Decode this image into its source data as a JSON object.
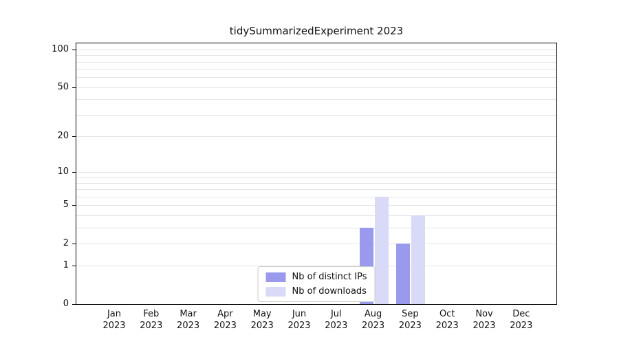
{
  "chart_data": {
    "type": "bar",
    "title": "tidySummarizedExperiment 2023",
    "scale": "log1p",
    "grid": true,
    "legend_position": "lower center",
    "categories": [
      "Jan",
      "Feb",
      "Mar",
      "Apr",
      "May",
      "Jun",
      "Jul",
      "Aug",
      "Sep",
      "Oct",
      "Nov",
      "Dec"
    ],
    "year": "2023",
    "series": [
      {
        "name": "Nb of distinct IPs",
        "color": "#9999ee",
        "values": [
          0,
          0,
          0,
          0,
          0,
          0,
          0,
          3,
          2,
          0,
          0,
          0
        ]
      },
      {
        "name": "Nb of downloads",
        "color": "#d9d9f8",
        "values": [
          0,
          0,
          0,
          0,
          0,
          0,
          0,
          6,
          4,
          0,
          0,
          0
        ]
      }
    ],
    "yticks": [
      0,
      1,
      2,
      5,
      10,
      20,
      50,
      100
    ],
    "grid_values": [
      1,
      2,
      3,
      4,
      5,
      6,
      7,
      8,
      9,
      10,
      20,
      30,
      40,
      50,
      60,
      70,
      80,
      90,
      100
    ],
    "ylim": [
      0,
      100
    ]
  }
}
